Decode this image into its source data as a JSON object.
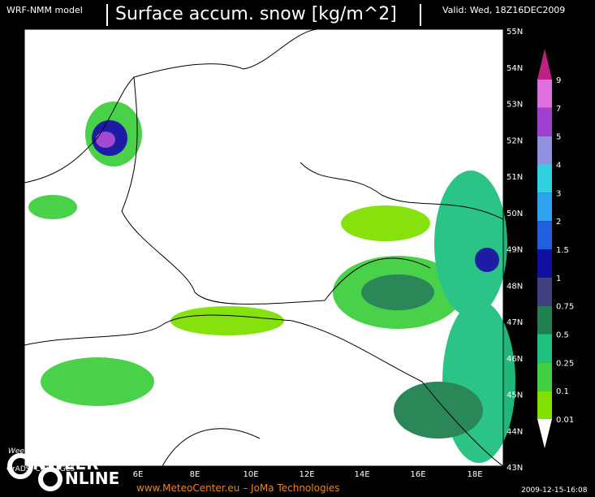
{
  "header": {
    "model": "WRF-NMM model",
    "title": "Surface accum. snow [kg/m^2]",
    "valid": "Valid: Wed, 18Z16DEC2009"
  },
  "lon_labels": [
    "6E",
    "8E",
    "10E",
    "12E",
    "14E",
    "16E",
    "18E"
  ],
  "lat_labels": [
    "55N",
    "54N",
    "53N",
    "52N",
    "51N",
    "50N",
    "49N",
    "48N",
    "47N",
    "46N",
    "45N",
    "44N",
    "43N"
  ],
  "colorbar": {
    "labels": [
      "9",
      "7",
      "5",
      "4",
      "3",
      "2",
      "1.5",
      "1",
      "0.75",
      "0.5",
      "0.25",
      "0.1",
      "0.01"
    ],
    "colors": [
      "#c02080",
      "#e070e0",
      "#a040d0",
      "#9090e0",
      "#30d0e0",
      "#30a0f0",
      "#2060e0",
      "#1010a0",
      "#404080",
      "#208050",
      "#20c080",
      "#40d040",
      "#80e000",
      "#ffffff"
    ]
  },
  "footer": {
    "grads": "GrADS: COLA/IGES",
    "site": "www.MeteoCenter.eu  –  JoMa Technologies",
    "stamp": "2009-12-15-16:08"
  },
  "logo": {
    "slogan": "Weer of geen weer, altijd actueel!",
    "line1": "NWEER",
    "line2": "NLINE"
  }
}
